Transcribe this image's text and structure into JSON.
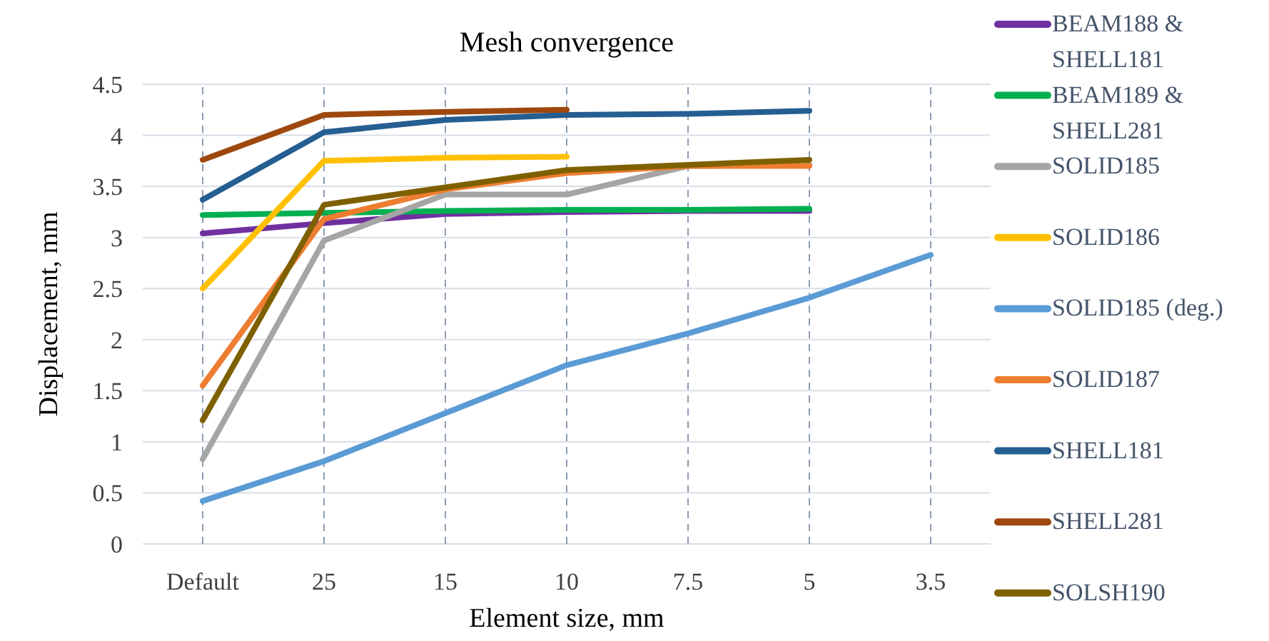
{
  "chart_data": {
    "type": "line",
    "title": "Mesh convergence",
    "xlabel": "Element size, mm",
    "ylabel": "Displacement, mm",
    "categories": [
      "Default",
      "25",
      "15",
      "10",
      "7.5",
      "5",
      "3.5"
    ],
    "ylim": [
      0,
      4.5
    ],
    "yticks": [
      0,
      0.5,
      1,
      1.5,
      2,
      2.5,
      3,
      3.5,
      4,
      4.5
    ],
    "grid": true,
    "legend": "right",
    "marker": "none",
    "line_style": "solid",
    "series": [
      {
        "name": "BEAM188 & SHELL181",
        "color": "#7030a0",
        "values": [
          3.04,
          3.14,
          3.23,
          3.25,
          3.26,
          3.26,
          null
        ]
      },
      {
        "name": "BEAM189 & SHELL281",
        "color": "#00b050",
        "values": [
          3.22,
          3.24,
          3.26,
          3.27,
          3.27,
          3.28,
          null
        ]
      },
      {
        "name": "SOLID185",
        "color": "#a5a5a5",
        "values": [
          0.83,
          2.97,
          3.42,
          3.42,
          3.7,
          3.71,
          null
        ]
      },
      {
        "name": "SOLID186",
        "color": "#ffc000",
        "values": [
          2.5,
          3.75,
          3.78,
          3.79,
          null,
          null,
          null
        ]
      },
      {
        "name": "SOLID185 (deg.)",
        "color": "#5b9bd5",
        "values": [
          0.42,
          0.81,
          1.28,
          1.75,
          2.06,
          2.41,
          2.83
        ]
      },
      {
        "name": "SOLID187",
        "color": "#ed7d31",
        "values": [
          1.55,
          3.18,
          3.47,
          3.63,
          3.7,
          3.7,
          null
        ]
      },
      {
        "name": "SHELL181",
        "color": "#255e91",
        "values": [
          3.37,
          4.03,
          4.15,
          4.2,
          4.21,
          4.24,
          null
        ]
      },
      {
        "name": "SHELL281",
        "color": "#9e480e",
        "values": [
          3.76,
          4.2,
          4.23,
          4.25,
          null,
          null,
          null
        ]
      },
      {
        "name": "SOLSH190",
        "color": "#7f6000",
        "values": [
          1.21,
          3.32,
          3.49,
          3.66,
          3.71,
          3.76,
          null
        ]
      }
    ]
  }
}
